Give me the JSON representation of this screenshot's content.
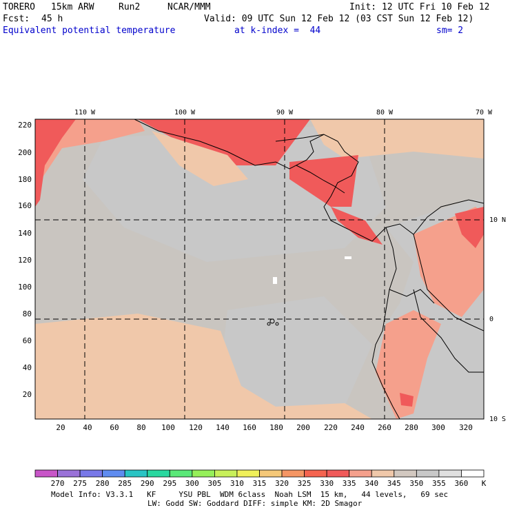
{
  "header": {
    "model": "TORERO",
    "resolution": "15km ARW",
    "run": "Run2",
    "org": "NCAR/MMM",
    "init": "Init: 12 UTC Fri 10 Feb 12",
    "fcst": "Fcst:",
    "fcst_hours": "45 h",
    "valid": "Valid: 09 UTC Sun 12 Feb 12 (03 CST Sun 12 Feb 12)",
    "field": "Equivalent potential temperature",
    "level": "at k-index =  44",
    "smoothing": "sm= 2"
  },
  "map": {
    "top_lon_labels": [
      "110 W",
      "100 W",
      "90 W",
      "80 W",
      "70 W"
    ],
    "right_lat_labels": [
      "10 N",
      "0",
      "10 S"
    ],
    "x_ticks": [
      "20",
      "40",
      "60",
      "80",
      "100",
      "120",
      "140",
      "160",
      "180",
      "200",
      "220",
      "240",
      "260",
      "280",
      "300",
      "320"
    ],
    "y_ticks": [
      "220",
      "200",
      "180",
      "160",
      "140",
      "120",
      "100",
      "80",
      "60",
      "40",
      "20"
    ]
  },
  "colorbar": {
    "labels": [
      "270",
      "275",
      "280",
      "285",
      "290",
      "295",
      "300",
      "305",
      "310",
      "315",
      "320",
      "325",
      "330",
      "335",
      "340",
      "345",
      "350",
      "355",
      "360"
    ],
    "unit": "K",
    "colors": [
      "#c855c8",
      "#9a72d8",
      "#7878e8",
      "#5f8cf0",
      "#2ac4c4",
      "#2ad8a0",
      "#5ae878",
      "#96f05a",
      "#c8f05a",
      "#f0f05a",
      "#f5c878",
      "#f59664",
      "#f56450",
      "#f05a5a",
      "#f5a08c",
      "#f0c8aa",
      "#d2c8c0",
      "#c8c8c8",
      "#e0e0e0",
      "#ffffff"
    ]
  },
  "footer": {
    "line1": "Model Info: V3.3.1   KF     YSU PBL  WDM 6class  Noah LSM  15 km,   44 levels,   69 sec",
    "line2": "LW: Godd SW: Goddard DIFF: simple KM: 2D Smagor"
  }
}
